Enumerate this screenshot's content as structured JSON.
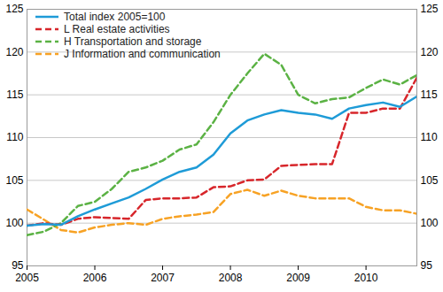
{
  "chart_data": {
    "type": "line",
    "x": [
      2005,
      2005.25,
      2005.5,
      2005.75,
      2006,
      2006.25,
      2006.5,
      2006.75,
      2007,
      2007.25,
      2007.5,
      2007.75,
      2008,
      2008.25,
      2008.5,
      2008.75,
      2009,
      2009.25,
      2009.5,
      2009.75,
      2010,
      2010.25,
      2010.5,
      2010.75
    ],
    "xlim": [
      2005,
      2010.75
    ],
    "xticks": [
      2005,
      2006,
      2007,
      2008,
      2009,
      2010
    ],
    "ylim": [
      95,
      125
    ],
    "yticks": [
      95,
      100,
      105,
      110,
      115,
      120,
      125
    ],
    "grid": true,
    "legend": "upper left",
    "series": [
      {
        "name": "Total index 2005=100",
        "color": "#1e9bd7",
        "line_style": "solid",
        "values": [
          99.7,
          99.9,
          99.8,
          100.8,
          101.6,
          102.3,
          103.0,
          104.0,
          105.1,
          106.0,
          106.5,
          108.0,
          110.5,
          112.0,
          112.7,
          113.2,
          112.9,
          112.7,
          112.2,
          113.4,
          113.8,
          114.1,
          113.6,
          114.8
        ]
      },
      {
        "name": "L Real estate activities",
        "color": "#d7262b",
        "line_style": "dashed",
        "values": [
          99.7,
          100.0,
          99.8,
          100.5,
          100.7,
          100.6,
          100.5,
          102.7,
          102.9,
          102.9,
          103.0,
          104.2,
          104.3,
          105.0,
          105.1,
          106.7,
          106.8,
          106.9,
          106.9,
          112.9,
          112.9,
          113.4,
          113.4,
          117.0
        ]
      },
      {
        "name": "H Transportation and storage",
        "color": "#5bb244",
        "line_style": "dashed",
        "values": [
          98.6,
          99.0,
          100.0,
          102.0,
          102.5,
          104.0,
          106.0,
          106.5,
          107.3,
          108.6,
          109.2,
          111.8,
          115.0,
          117.5,
          119.8,
          118.5,
          115.0,
          114.0,
          114.5,
          114.7,
          115.8,
          116.8,
          116.2,
          117.3
        ]
      },
      {
        "name": "J Information and communication",
        "color": "#f7a224",
        "line_style": "dashed",
        "values": [
          101.6,
          100.4,
          99.2,
          98.9,
          99.5,
          99.8,
          100.0,
          99.8,
          100.5,
          100.8,
          101.0,
          101.3,
          103.4,
          103.9,
          103.2,
          103.8,
          103.2,
          102.9,
          102.9,
          102.9,
          101.9,
          101.5,
          101.5,
          101.1
        ]
      }
    ]
  }
}
